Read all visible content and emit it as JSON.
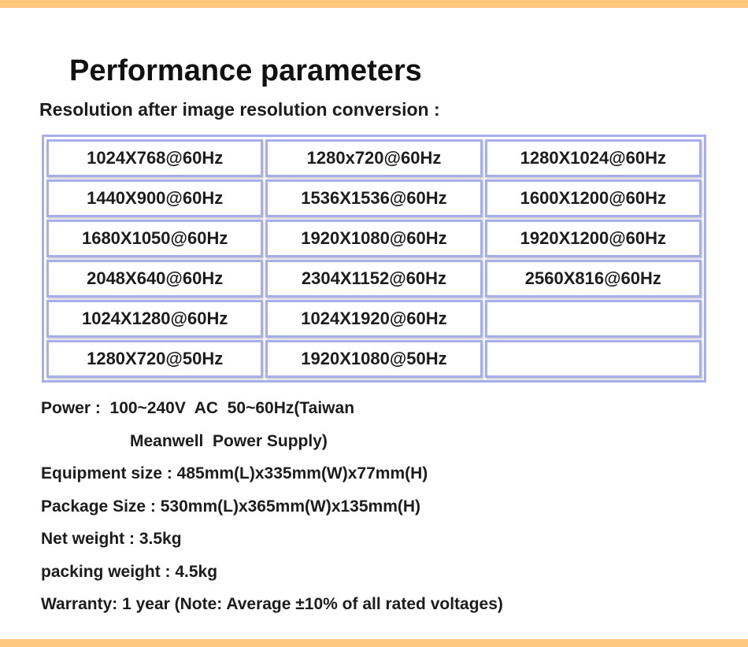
{
  "page": {
    "accent_color": "#fbc87d",
    "title": "Performance parameters",
    "table_caption": "Resolution after image resolution conversion :"
  },
  "resolution_table": {
    "border_color": "#a8aee8",
    "rows": [
      [
        "1024X768@60Hz",
        "1280x720@60Hz",
        "1280X1024@60Hz"
      ],
      [
        "1440X900@60Hz",
        "1536X1536@60Hz",
        "1600X1200@60Hz"
      ],
      [
        "1680X1050@60Hz",
        "1920X1080@60Hz",
        "1920X1200@60Hz"
      ],
      [
        "2048X640@60Hz",
        "2304X1152@60Hz",
        "2560X816@60Hz"
      ],
      [
        "1024X1280@60Hz",
        "1024X1920@60Hz",
        ""
      ],
      [
        "1280X720@50Hz",
        "1920X1080@50Hz",
        ""
      ]
    ]
  },
  "specs": {
    "power_line1": "Power :  100~240V  AC  50~60Hz(Taiwan",
    "power_line2": "Meanwell  Power Supply)",
    "equipment_size": "Equipment size : 485mm(L)x335mm(W)x77mm(H)",
    "package_size": "Package Size : 530mm(L)x365mm(W)x135mm(H)",
    "net_weight": "Net weight : 3.5kg",
    "packing_weight": "packing weight : 4.5kg",
    "warranty": "Warranty: 1 year (Note: Average ±10% of all rated voltages)"
  }
}
